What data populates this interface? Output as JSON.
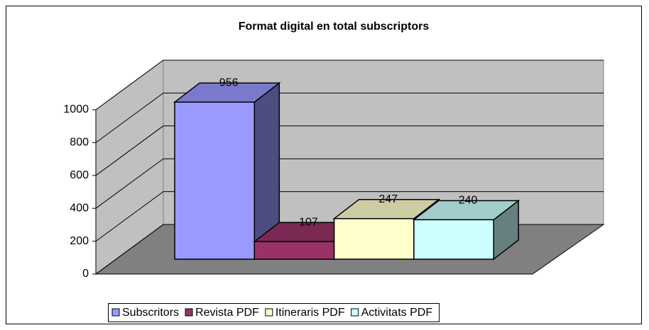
{
  "chart_data": {
    "type": "bar3d",
    "title": "Format digital en total subscriptors",
    "categories": [
      ""
    ],
    "series": [
      {
        "name": "Subscritors",
        "color": "#9999ff",
        "values": [
          956
        ]
      },
      {
        "name": "Revista PDF",
        "color": "#993366",
        "values": [
          107
        ]
      },
      {
        "name": "Itineraris PDF",
        "color": "#ffffcc",
        "values": [
          247
        ]
      },
      {
        "name": "Activitats PDF",
        "color": "#ccffff",
        "values": [
          240
        ]
      }
    ],
    "ylim": [
      0,
      1000
    ],
    "yticks": [
      0,
      200,
      400,
      600,
      800,
      1000
    ],
    "grid": true,
    "legend": "bottom"
  }
}
